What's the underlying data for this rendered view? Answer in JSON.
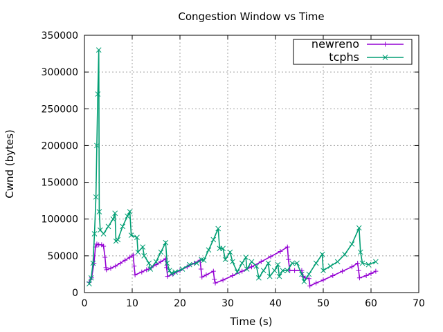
{
  "chart_data": {
    "type": "line",
    "title": "Congestion Window vs Time",
    "xlabel": "Time (s)",
    "ylabel": "Cwnd (bytes)",
    "xlim": [
      0,
      70
    ],
    "ylim": [
      0,
      350000
    ],
    "xticks": [
      0,
      10,
      20,
      30,
      40,
      50,
      60,
      70
    ],
    "yticks": [
      0,
      50000,
      100000,
      150000,
      200000,
      250000,
      300000,
      350000
    ],
    "grid": true,
    "legend_position": "top-right",
    "series": [
      {
        "name": "newreno",
        "color": "#9400d3",
        "marker": "+",
        "points": [
          [
            1.0,
            14000
          ],
          [
            1.5,
            20000
          ],
          [
            2.0,
            40000
          ],
          [
            2.3,
            62000
          ],
          [
            2.6,
            66000
          ],
          [
            3.0,
            65000
          ],
          [
            3.6,
            65000
          ],
          [
            4.0,
            63000
          ],
          [
            4.3,
            48000
          ],
          [
            4.5,
            34000
          ],
          [
            4.6,
            31000
          ],
          [
            5.5,
            33000
          ],
          [
            6.5,
            36000
          ],
          [
            7.5,
            40000
          ],
          [
            8.5,
            44000
          ],
          [
            9.5,
            48000
          ],
          [
            10.2,
            51000
          ],
          [
            10.4,
            36000
          ],
          [
            10.6,
            24000
          ],
          [
            12,
            28000
          ],
          [
            13,
            31000
          ],
          [
            14,
            34000
          ],
          [
            15,
            38000
          ],
          [
            16,
            42000
          ],
          [
            17.0,
            46000
          ],
          [
            17.2,
            34000
          ],
          [
            17.4,
            22000
          ],
          [
            18.5,
            25000
          ],
          [
            20,
            30000
          ],
          [
            21.5,
            35000
          ],
          [
            23,
            40000
          ],
          [
            24.2,
            44000
          ],
          [
            24.4,
            32000
          ],
          [
            24.6,
            21000
          ],
          [
            25.5,
            24000
          ],
          [
            27.0,
            29000
          ],
          [
            27.2,
            18000
          ],
          [
            27.4,
            13000
          ],
          [
            29,
            17000
          ],
          [
            31,
            23000
          ],
          [
            33,
            29000
          ],
          [
            35,
            35000
          ],
          [
            37,
            42000
          ],
          [
            39,
            49000
          ],
          [
            41,
            56000
          ],
          [
            42.5,
            62000
          ],
          [
            42.7,
            45000
          ],
          [
            43.0,
            30000
          ],
          [
            44.0,
            30000
          ],
          [
            45.5,
            30000
          ],
          [
            45.8,
            22000
          ],
          [
            46.2,
            20000
          ],
          [
            47.0,
            19000
          ],
          [
            47.2,
            9000
          ],
          [
            48.5,
            13000
          ],
          [
            50,
            17000
          ],
          [
            52,
            23000
          ],
          [
            54,
            29000
          ],
          [
            56,
            35000
          ],
          [
            57.2,
            40000
          ],
          [
            57.4,
            30000
          ],
          [
            57.6,
            20000
          ],
          [
            59,
            23000
          ],
          [
            60,
            26000
          ],
          [
            61,
            29000
          ]
        ]
      },
      {
        "name": "tcphs",
        "color": "#009e73",
        "marker": "x",
        "points": [
          [
            1.0,
            12000
          ],
          [
            1.4,
            20000
          ],
          [
            1.8,
            40000
          ],
          [
            2.1,
            80000
          ],
          [
            2.4,
            130000
          ],
          [
            2.6,
            200000
          ],
          [
            2.8,
            270000
          ],
          [
            3.0,
            330000
          ],
          [
            3.1,
            110000
          ],
          [
            3.3,
            85000
          ],
          [
            4.0,
            80000
          ],
          [
            5.0,
            90000
          ],
          [
            6.0,
            100000
          ],
          [
            6.4,
            108000
          ],
          [
            6.6,
            70000
          ],
          [
            7.0,
            72000
          ],
          [
            8.0,
            90000
          ],
          [
            9.0,
            104000
          ],
          [
            9.5,
            110000
          ],
          [
            9.8,
            78000
          ],
          [
            11.0,
            75000
          ],
          [
            11.2,
            55000
          ],
          [
            12.2,
            62000
          ],
          [
            12.5,
            50000
          ],
          [
            13.5,
            40000
          ],
          [
            13.8,
            32000
          ],
          [
            15.0,
            42000
          ],
          [
            16.0,
            55000
          ],
          [
            17.0,
            68000
          ],
          [
            17.3,
            40000
          ],
          [
            17.8,
            30000
          ],
          [
            18.2,
            26000
          ],
          [
            19.0,
            28000
          ],
          [
            20.5,
            32000
          ],
          [
            22.0,
            38000
          ],
          [
            23.5,
            40000
          ],
          [
            24.5,
            45000
          ],
          [
            25.0,
            44000
          ],
          [
            26.0,
            58000
          ],
          [
            27.0,
            72000
          ],
          [
            28.0,
            87000
          ],
          [
            28.3,
            60000
          ],
          [
            29.0,
            60000
          ],
          [
            29.5,
            45000
          ],
          [
            30.5,
            55000
          ],
          [
            31.0,
            42000
          ],
          [
            32.0,
            28000
          ],
          [
            33.0,
            40000
          ],
          [
            33.8,
            48000
          ],
          [
            34.0,
            32000
          ],
          [
            35.0,
            42000
          ],
          [
            36.0,
            36000
          ],
          [
            36.5,
            20000
          ],
          [
            37.5,
            30000
          ],
          [
            38.5,
            40000
          ],
          [
            38.8,
            22000
          ],
          [
            39.8,
            30000
          ],
          [
            40.5,
            38000
          ],
          [
            40.8,
            22000
          ],
          [
            41.5,
            30000
          ],
          [
            42.5,
            30000
          ],
          [
            43.5,
            40000
          ],
          [
            44.5,
            40000
          ],
          [
            45.5,
            25000
          ],
          [
            46.0,
            15000
          ],
          [
            47.0,
            25000
          ],
          [
            48.5,
            40000
          ],
          [
            49.8,
            52000
          ],
          [
            50.0,
            30000
          ],
          [
            51.5,
            36000
          ],
          [
            53.0,
            42000
          ],
          [
            54.5,
            52000
          ],
          [
            56.0,
            66000
          ],
          [
            57.5,
            88000
          ],
          [
            57.8,
            55000
          ],
          [
            58.2,
            40000
          ],
          [
            59.5,
            38000
          ],
          [
            61.0,
            42000
          ]
        ]
      }
    ]
  }
}
